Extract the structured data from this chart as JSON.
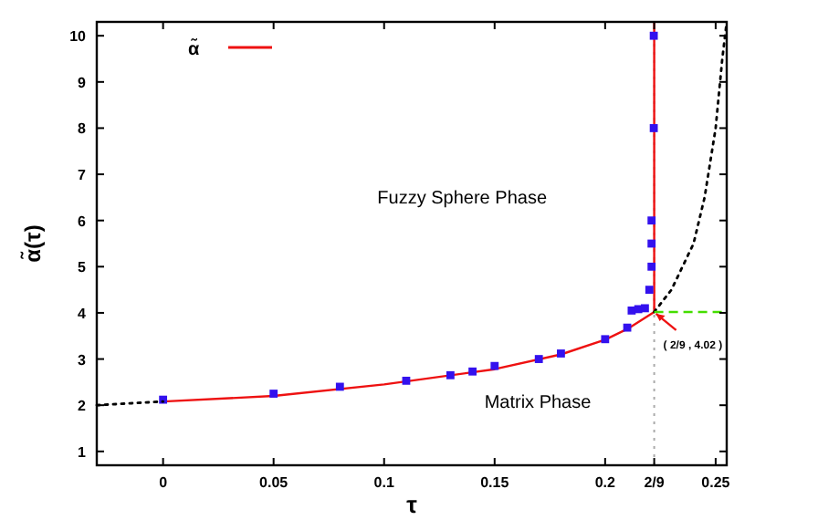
{
  "chart_data": {
    "type": "line",
    "xlabel": "τ",
    "ylabel": "α̃(τ)",
    "xlim": [
      -0.03,
      0.255
    ],
    "ylim": [
      0.7,
      10.3
    ],
    "xticks": [
      0,
      0.05,
      0.1,
      0.15,
      0.2,
      {
        "value": 0.2222,
        "label": "2/9"
      },
      0.25
    ],
    "yticks": [
      1,
      2,
      3,
      4,
      5,
      6,
      7,
      8,
      9,
      10
    ],
    "grid": false,
    "legend": "top left",
    "series": [
      {
        "name": "α̃",
        "color": "#ee1111",
        "line_style": "solid",
        "x": [
          0,
          0.05,
          0.1,
          0.15,
          0.18,
          0.2,
          0.21,
          0.2222,
          0.2222
        ],
        "values": [
          2.08,
          2.2,
          2.45,
          2.78,
          3.1,
          3.42,
          3.65,
          4.02,
          10.3
        ]
      },
      {
        "type": "scatter",
        "color": "#3311ee",
        "marker": "square",
        "x": [
          0,
          0.05,
          0.08,
          0.11,
          0.13,
          0.14,
          0.15,
          0.17,
          0.18,
          0.2,
          0.21,
          0.212,
          0.215,
          0.218,
          0.22,
          0.221,
          0.221,
          0.221,
          0.222,
          0.222
        ],
        "values": [
          2.12,
          2.25,
          2.4,
          2.53,
          2.65,
          2.73,
          2.85,
          3.0,
          3.12,
          3.43,
          3.68,
          4.05,
          4.08,
          4.1,
          4.5,
          5.0,
          5.5,
          6.0,
          8.0,
          10.0
        ]
      },
      {
        "color": "#000000",
        "line_style": "dotted",
        "x": [
          -0.03,
          -0.015,
          0,
          0.1,
          0.2222,
          0.23,
          0.24,
          0.245,
          0.25,
          0.253,
          0.255
        ],
        "values": [
          2.0,
          2.04,
          2.08,
          null,
          4.02,
          4.5,
          5.5,
          6.5,
          8.0,
          9.5,
          10.3
        ]
      },
      {
        "color": "#44dd00",
        "line_style": "dashed",
        "x": [
          0.2222,
          0.255
        ],
        "values": [
          4.02,
          4.02
        ]
      }
    ],
    "ref_lines": [
      {
        "axis": "x",
        "value": 0.2222,
        "color": "#aaaaaa",
        "line_style": "dotted"
      }
    ],
    "annotations": [
      "Fuzzy Sphere Phase",
      "Matrix Phase",
      {
        "text": "( 2/9 , 4.02 )",
        "x": 0.2222,
        "y": 4.02
      }
    ]
  }
}
